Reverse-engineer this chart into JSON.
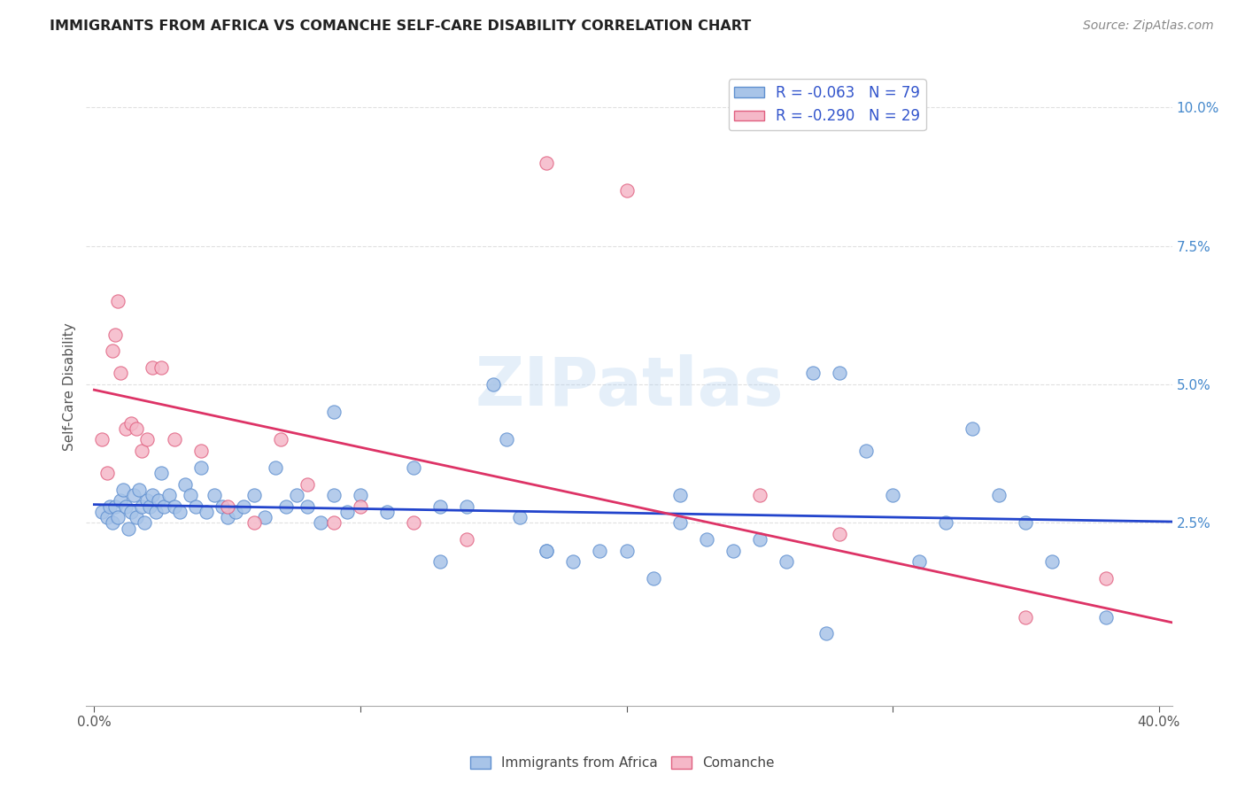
{
  "title": "IMMIGRANTS FROM AFRICA VS COMANCHE SELF-CARE DISABILITY CORRELATION CHART",
  "source": "Source: ZipAtlas.com",
  "ylabel": "Self-Care Disability",
  "xlim": [
    -0.003,
    0.405
  ],
  "ylim": [
    -0.008,
    0.107
  ],
  "xticks": [
    0.0,
    0.1,
    0.2,
    0.3,
    0.4
  ],
  "xtick_labels": [
    "0.0%",
    "",
    "",
    "",
    "40.0%"
  ],
  "yticks": [
    0.025,
    0.05,
    0.075,
    0.1
  ],
  "ytick_labels": [
    "2.5%",
    "5.0%",
    "7.5%",
    "10.0%"
  ],
  "watermark": "ZIPatlas",
  "legend_r_blue": "-0.063",
  "legend_n_blue": "79",
  "legend_r_pink": "-0.290",
  "legend_n_pink": "29",
  "blue_scatter_color": "#a8c4e8",
  "pink_scatter_color": "#f5b8c8",
  "blue_edge_color": "#6090d0",
  "pink_edge_color": "#e06080",
  "line_blue_color": "#2244cc",
  "line_pink_color": "#dd3366",
  "grid_color": "#dddddd",
  "title_color": "#222222",
  "source_color": "#888888",
  "tick_color_x": "#555555",
  "tick_color_y": "#4488cc",
  "blue_scatter_x": [
    0.003,
    0.005,
    0.006,
    0.007,
    0.008,
    0.009,
    0.01,
    0.011,
    0.012,
    0.013,
    0.014,
    0.015,
    0.016,
    0.017,
    0.018,
    0.019,
    0.02,
    0.021,
    0.022,
    0.023,
    0.024,
    0.025,
    0.026,
    0.028,
    0.03,
    0.032,
    0.034,
    0.036,
    0.038,
    0.04,
    0.042,
    0.045,
    0.048,
    0.05,
    0.053,
    0.056,
    0.06,
    0.064,
    0.068,
    0.072,
    0.076,
    0.08,
    0.085,
    0.09,
    0.095,
    0.1,
    0.11,
    0.12,
    0.13,
    0.14,
    0.15,
    0.16,
    0.17,
    0.18,
    0.19,
    0.2,
    0.21,
    0.22,
    0.23,
    0.24,
    0.25,
    0.26,
    0.27,
    0.28,
    0.29,
    0.3,
    0.31,
    0.32,
    0.33,
    0.34,
    0.35,
    0.36,
    0.275,
    0.155,
    0.38,
    0.22,
    0.17,
    0.13,
    0.09
  ],
  "blue_scatter_y": [
    0.027,
    0.026,
    0.028,
    0.025,
    0.028,
    0.026,
    0.029,
    0.031,
    0.028,
    0.024,
    0.027,
    0.03,
    0.026,
    0.031,
    0.028,
    0.025,
    0.029,
    0.028,
    0.03,
    0.027,
    0.029,
    0.034,
    0.028,
    0.03,
    0.028,
    0.027,
    0.032,
    0.03,
    0.028,
    0.035,
    0.027,
    0.03,
    0.028,
    0.026,
    0.027,
    0.028,
    0.03,
    0.026,
    0.035,
    0.028,
    0.03,
    0.028,
    0.025,
    0.03,
    0.027,
    0.03,
    0.027,
    0.035,
    0.028,
    0.028,
    0.05,
    0.026,
    0.02,
    0.018,
    0.02,
    0.02,
    0.015,
    0.025,
    0.022,
    0.02,
    0.022,
    0.018,
    0.052,
    0.052,
    0.038,
    0.03,
    0.018,
    0.025,
    0.042,
    0.03,
    0.025,
    0.018,
    0.005,
    0.04,
    0.008,
    0.03,
    0.02,
    0.018,
    0.045
  ],
  "pink_scatter_x": [
    0.003,
    0.005,
    0.007,
    0.008,
    0.009,
    0.01,
    0.012,
    0.014,
    0.016,
    0.018,
    0.02,
    0.022,
    0.025,
    0.03,
    0.04,
    0.05,
    0.06,
    0.07,
    0.08,
    0.09,
    0.1,
    0.12,
    0.14,
    0.17,
    0.2,
    0.25,
    0.28,
    0.35,
    0.38
  ],
  "pink_scatter_y": [
    0.04,
    0.034,
    0.056,
    0.059,
    0.065,
    0.052,
    0.042,
    0.043,
    0.042,
    0.038,
    0.04,
    0.053,
    0.053,
    0.04,
    0.038,
    0.028,
    0.025,
    0.04,
    0.032,
    0.025,
    0.028,
    0.025,
    0.022,
    0.09,
    0.085,
    0.03,
    0.023,
    0.008,
    0.015
  ],
  "blue_line_x": [
    0.0,
    0.405
  ],
  "blue_line_y": [
    0.0283,
    0.0252
  ],
  "pink_line_x": [
    0.0,
    0.405
  ],
  "pink_line_y": [
    0.049,
    0.007
  ],
  "legend_label_blue": "Immigrants from Africa",
  "legend_label_pink": "Comanche"
}
